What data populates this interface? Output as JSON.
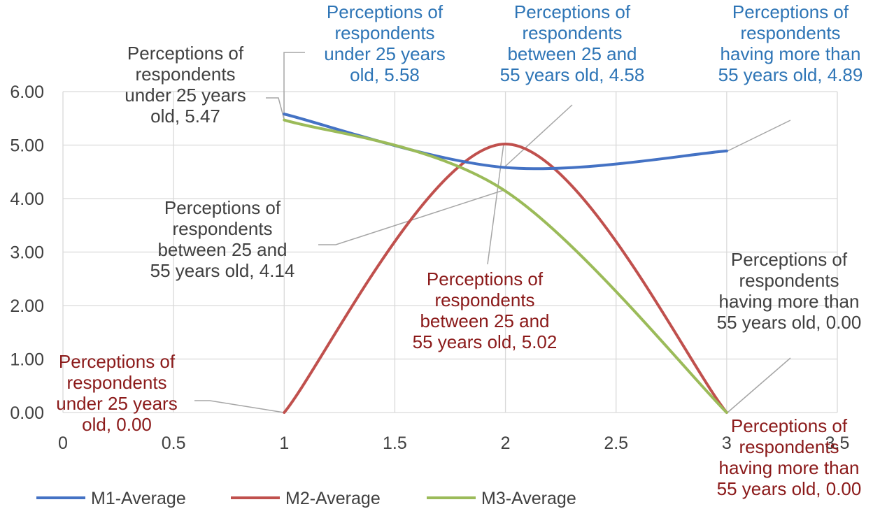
{
  "chart_data": {
    "type": "line",
    "title": "",
    "xlabel": "",
    "ylabel": "",
    "xlim": [
      0,
      3.5
    ],
    "ylim": [
      0,
      6
    ],
    "grid": true,
    "x_ticks": [
      "0",
      "0.5",
      "1",
      "1.5",
      "2",
      "2.5",
      "3",
      "3.5"
    ],
    "y_ticks": [
      "0.00",
      "1.00",
      "2.00",
      "3.00",
      "4.00",
      "5.00",
      "6.00"
    ],
    "legend_position": "bottom",
    "series": [
      {
        "name": "M1-Average",
        "color": "#4472C4",
        "x": [
          1,
          2,
          3
        ],
        "values": [
          5.58,
          4.58,
          4.89
        ],
        "labels": [
          [
            "Perceptions of",
            "respondents",
            "under 25 years",
            "old, 5.58"
          ],
          [
            "Perceptions of",
            "respondents",
            "between 25 and",
            "55 years old, 4.58"
          ],
          [
            "Perceptions of",
            "respondents",
            "having more than",
            "55 years old, 4.89"
          ]
        ],
        "label_color": "#2E75B6"
      },
      {
        "name": "M2-Average",
        "color": "#C0504D",
        "x": [
          1,
          2,
          3
        ],
        "values": [
          0.0,
          5.02,
          0.0
        ],
        "labels": [
          [
            "Perceptions of",
            "respondents",
            "under 25 years",
            "old, 0.00"
          ],
          [
            "Perceptions of",
            "respondents",
            "between 25 and",
            "55 years old, 5.02"
          ],
          [
            "Perceptions of",
            "respondents",
            "having more than",
            "55 years old, 0.00"
          ]
        ],
        "label_color": "#8B1A1A"
      },
      {
        "name": "M3-Average",
        "color": "#9BBB59",
        "x": [
          1,
          2,
          3
        ],
        "values": [
          5.47,
          4.14,
          0.0
        ],
        "labels": [
          [
            "Perceptions of",
            "respondents",
            "under 25 years",
            "old, 5.47"
          ],
          [
            "Perceptions of",
            "respondents",
            "between 25 and",
            "55 years old, 4.14"
          ],
          [
            "Perceptions of",
            "respondents",
            "having more than",
            "55 years old, 0.00"
          ]
        ],
        "label_color": "#404040"
      }
    ]
  }
}
